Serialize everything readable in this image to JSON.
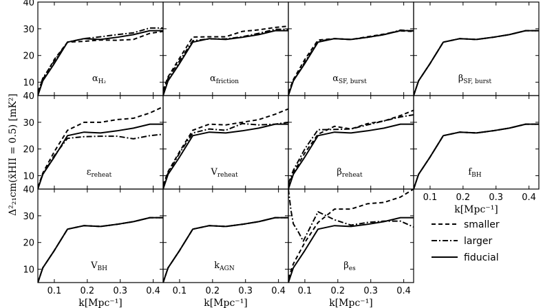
{
  "chart_data": {
    "type": "line",
    "layout": "3x4 grid of panels with shared axes",
    "xlabel": "k[Mpc⁻¹]",
    "ylabel": "Δ²₂₁cm(x̄HII = 0.5) [mK²]",
    "xlim": [
      0.05,
      0.43
    ],
    "ylim": [
      5,
      40
    ],
    "xticks": [
      "0.1",
      "0.2",
      "0.3",
      "0.4"
    ],
    "yticks": [
      "10",
      "20",
      "30",
      "40"
    ],
    "line_styles": {
      "smaller": "dashed",
      "larger": "dashdot",
      "fiducial": "solid"
    },
    "legend": [
      {
        "label": "smaller",
        "style": "dashed"
      },
      {
        "label": "larger",
        "style": "dashdot"
      },
      {
        "label": "fiducial",
        "style": "solid"
      }
    ],
    "fiducial": {
      "x": [
        0.05,
        0.065,
        0.1,
        0.14,
        0.19,
        0.24,
        0.29,
        0.34,
        0.39,
        0.43
      ],
      "y": [
        5.0,
        10.5,
        17.0,
        25.0,
        26.3,
        26.0,
        26.8,
        27.8,
        29.3,
        29.3
      ]
    },
    "panels": [
      {
        "name": "alpha-h2",
        "label_main": "α",
        "label_sub": "H₂",
        "smaller": {
          "x": [
            0.05,
            0.065,
            0.1,
            0.14,
            0.19,
            0.24,
            0.29,
            0.34,
            0.39,
            0.43
          ],
          "y": [
            6.5,
            11.0,
            18.5,
            25.0,
            25.3,
            25.8,
            25.7,
            26.0,
            28.3,
            29.0
          ]
        },
        "larger": {
          "x": [
            0.05,
            0.065,
            0.1,
            0.14,
            0.19,
            0.24,
            0.29,
            0.34,
            0.39,
            0.43
          ],
          "y": [
            6.0,
            11.5,
            18.0,
            25.0,
            26.3,
            27.0,
            27.8,
            28.5,
            30.3,
            30.3
          ]
        }
      },
      {
        "name": "alpha-friction",
        "label_main": "α",
        "label_sub": "friction",
        "smaller": {
          "x": [
            0.05,
            0.065,
            0.1,
            0.14,
            0.19,
            0.24,
            0.29,
            0.34,
            0.39,
            0.43
          ],
          "y": [
            7.0,
            12.0,
            19.0,
            26.9,
            27.0,
            27.0,
            29.0,
            29.6,
            30.5,
            31.0
          ]
        },
        "larger": {
          "x": [
            0.05,
            0.065,
            0.1,
            0.14,
            0.19,
            0.24,
            0.29,
            0.34,
            0.39,
            0.43
          ],
          "y": [
            6.5,
            11.5,
            18.0,
            25.5,
            26.2,
            26.2,
            27.0,
            28.3,
            29.8,
            29.8
          ]
        }
      },
      {
        "name": "alpha-sf-burst",
        "label_main": "α",
        "label_sub": "SF, burst",
        "smaller": {
          "x": [
            0.05,
            0.065,
            0.1,
            0.14,
            0.19,
            0.24,
            0.29,
            0.34,
            0.39,
            0.43
          ],
          "y": [
            6.0,
            11.0,
            18.5,
            25.8,
            26.3,
            26.0,
            27.0,
            28.0,
            29.2,
            29.0
          ]
        },
        "larger": {
          "x": [
            0.05,
            0.065,
            0.1,
            0.14,
            0.19,
            0.24,
            0.29,
            0.34,
            0.39,
            0.43
          ],
          "y": [
            5.5,
            10.5,
            17.5,
            25.3,
            26.3,
            26.0,
            26.8,
            27.8,
            29.5,
            29.2
          ]
        }
      },
      {
        "name": "beta-sf-burst",
        "label_main": "β",
        "label_sub": "SF, burst",
        "smaller": {
          "x": [
            0.05,
            0.065,
            0.1,
            0.14,
            0.19,
            0.24,
            0.29,
            0.34,
            0.39,
            0.43
          ],
          "y": [
            5.0,
            10.5,
            17.0,
            25.0,
            26.3,
            26.0,
            26.8,
            27.8,
            29.3,
            29.3
          ]
        },
        "larger": {
          "x": [
            0.05,
            0.065,
            0.1,
            0.14,
            0.19,
            0.24,
            0.29,
            0.34,
            0.39,
            0.43
          ],
          "y": [
            5.0,
            10.5,
            17.0,
            25.0,
            26.3,
            26.0,
            26.8,
            27.8,
            29.3,
            29.3
          ]
        }
      },
      {
        "name": "epsilon-reheat",
        "label_main": "ε",
        "label_sub": "reheat",
        "smaller": {
          "x": [
            0.05,
            0.065,
            0.1,
            0.14,
            0.19,
            0.24,
            0.29,
            0.34,
            0.39,
            0.43
          ],
          "y": [
            5.5,
            11.0,
            19.0,
            27.0,
            30.0,
            30.0,
            31.0,
            31.5,
            33.5,
            35.8
          ]
        },
        "larger": {
          "x": [
            0.05,
            0.065,
            0.1,
            0.14,
            0.19,
            0.24,
            0.29,
            0.34,
            0.39,
            0.43
          ],
          "y": [
            5.5,
            10.5,
            17.5,
            24.0,
            24.6,
            24.8,
            24.8,
            23.8,
            25.0,
            25.5
          ]
        }
      },
      {
        "name": "v-reheat",
        "label_main": "V",
        "label_sub": "reheat",
        "smaller": {
          "x": [
            0.05,
            0.065,
            0.1,
            0.14,
            0.19,
            0.24,
            0.29,
            0.34,
            0.39,
            0.43
          ],
          "y": [
            6.5,
            11.5,
            19.0,
            27.0,
            29.3,
            29.0,
            30.0,
            31.0,
            33.0,
            35.0
          ]
        },
        "larger": {
          "x": [
            0.05,
            0.065,
            0.1,
            0.14,
            0.19,
            0.24,
            0.29,
            0.34,
            0.39,
            0.43
          ],
          "y": [
            6.0,
            11.0,
            18.5,
            26.0,
            27.5,
            27.0,
            29.5,
            29.0,
            29.3,
            30.0
          ]
        }
      },
      {
        "name": "beta-reheat",
        "label_main": "β",
        "label_sub": "reheat",
        "smaller": {
          "x": [
            0.05,
            0.065,
            0.1,
            0.14,
            0.19,
            0.24,
            0.29,
            0.34,
            0.39,
            0.43
          ],
          "y": [
            6.0,
            11.0,
            18.5,
            25.5,
            28.5,
            27.5,
            29.5,
            30.5,
            32.5,
            34.5
          ]
        },
        "larger": {
          "x": [
            0.05,
            0.065,
            0.1,
            0.14,
            0.19,
            0.24,
            0.29,
            0.34,
            0.39,
            0.43
          ],
          "y": [
            7.0,
            12.0,
            20.0,
            27.2,
            27.3,
            27.5,
            29.0,
            30.5,
            32.0,
            32.8
          ]
        }
      },
      {
        "name": "f-bh",
        "label_main": "f",
        "label_sub": "BH",
        "smaller": {
          "x": [
            0.05,
            0.065,
            0.1,
            0.14,
            0.19,
            0.24,
            0.29,
            0.34,
            0.39,
            0.43
          ],
          "y": [
            5.0,
            10.5,
            17.0,
            25.0,
            26.3,
            26.0,
            26.8,
            27.8,
            29.3,
            29.3
          ]
        },
        "larger": {
          "x": [
            0.05,
            0.065,
            0.1,
            0.14,
            0.19,
            0.24,
            0.29,
            0.34,
            0.39,
            0.43
          ],
          "y": [
            5.0,
            10.5,
            17.0,
            25.0,
            26.3,
            26.0,
            26.8,
            27.8,
            29.3,
            29.3
          ]
        }
      },
      {
        "name": "v-bh",
        "label_main": "V",
        "label_sub": "BH",
        "smaller": {
          "x": [
            0.05,
            0.065,
            0.1,
            0.14,
            0.19,
            0.24,
            0.29,
            0.34,
            0.39,
            0.43
          ],
          "y": [
            5.0,
            10.5,
            17.0,
            25.0,
            26.3,
            26.0,
            26.8,
            27.8,
            29.3,
            29.3
          ]
        },
        "larger": {
          "x": [
            0.05,
            0.065,
            0.1,
            0.14,
            0.19,
            0.24,
            0.29,
            0.34,
            0.39,
            0.43
          ],
          "y": [
            5.0,
            10.5,
            17.0,
            25.0,
            26.3,
            26.0,
            26.8,
            27.8,
            29.3,
            29.3
          ]
        }
      },
      {
        "name": "k-agn",
        "label_main": "k",
        "label_sub": "AGN",
        "smaller": {
          "x": [
            0.05,
            0.065,
            0.1,
            0.14,
            0.19,
            0.24,
            0.29,
            0.34,
            0.39,
            0.43
          ],
          "y": [
            5.0,
            10.5,
            17.0,
            25.0,
            26.3,
            26.0,
            26.8,
            27.8,
            29.3,
            29.3
          ]
        },
        "larger": {
          "x": [
            0.05,
            0.065,
            0.1,
            0.14,
            0.19,
            0.24,
            0.29,
            0.34,
            0.39,
            0.43
          ],
          "y": [
            5.0,
            10.5,
            17.0,
            25.0,
            26.3,
            26.0,
            26.8,
            27.8,
            29.3,
            29.3
          ]
        }
      },
      {
        "name": "beta-es",
        "label_main": "β",
        "label_sub": "es",
        "smaller": {
          "x": [
            0.05,
            0.065,
            0.1,
            0.14,
            0.19,
            0.24,
            0.29,
            0.34,
            0.39,
            0.43
          ],
          "y": [
            6.5,
            12.0,
            20.0,
            27.5,
            32.5,
            32.5,
            34.5,
            35.0,
            37.0,
            40.0
          ]
        },
        "larger": {
          "x": [
            0.05,
            0.058,
            0.065,
            0.08,
            0.095,
            0.14,
            0.19,
            0.24,
            0.29,
            0.34,
            0.39,
            0.43
          ],
          "y": [
            40.0,
            32.0,
            27.0,
            24.0,
            20.5,
            31.5,
            28.5,
            26.5,
            27.5,
            28.0,
            28.0,
            25.8
          ]
        }
      }
    ]
  }
}
